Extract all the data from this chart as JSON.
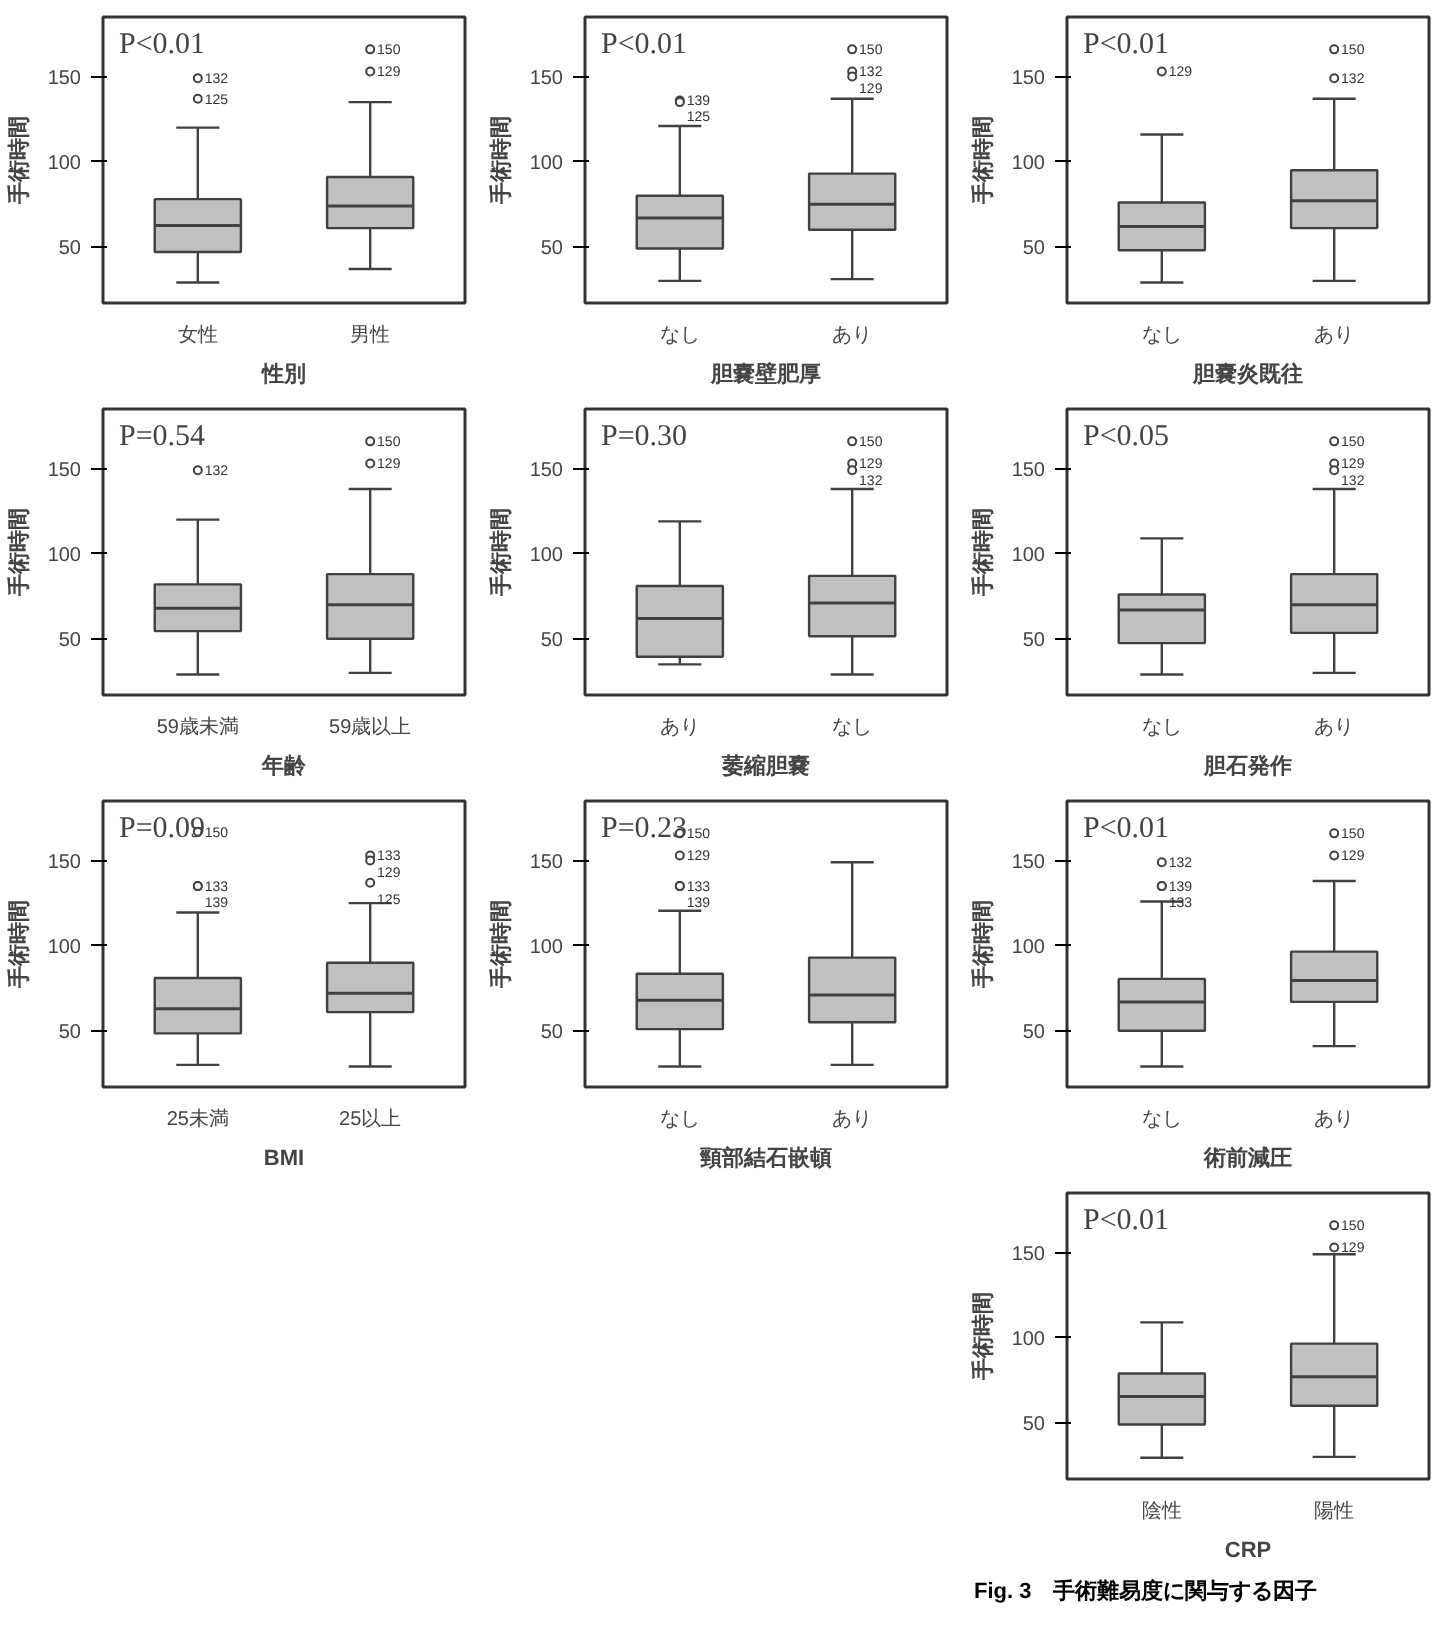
{
  "chart_data": [
    {
      "type": "box",
      "xlabel": "性別",
      "ylabel": "手術時間",
      "categories": [
        "女性",
        "男性"
      ],
      "ylim": [
        17,
        185
      ],
      "yticks": [
        50,
        100,
        150
      ],
      "grid": false,
      "boxes": [
        {
          "low": 29,
          "q1": 47,
          "median": 62.5,
          "q3": 78,
          "high": 120,
          "outliers": [
            149,
            137
          ]
        },
        {
          "low": 37,
          "q1": 61,
          "median": 74,
          "q3": 91,
          "high": 135,
          "outliers": [
            166,
            153
          ]
        }
      ],
      "annotations": [
        "P<0.01",
        "132",
        "125",
        "150",
        "129"
      ]
    },
    {
      "type": "box",
      "xlabel": "胆嚢壁肥厚",
      "ylabel": "手術時間",
      "categories": [
        "なし",
        "あり"
      ],
      "ylim": [
        17,
        185
      ],
      "yticks": [
        50,
        100,
        150
      ],
      "grid": false,
      "boxes": [
        {
          "low": 30,
          "q1": 49,
          "median": 67,
          "q3": 80,
          "high": 121,
          "outliers": [
            136,
            135
          ]
        },
        {
          "low": 31,
          "q1": 60,
          "median": 75,
          "q3": 93,
          "high": 137,
          "outliers": [
            166,
            153,
            150
          ]
        }
      ],
      "annotations": [
        "P<0.01",
        "139",
        "125",
        "150",
        "132",
        "129"
      ]
    },
    {
      "type": "box",
      "xlabel": "胆嚢炎既往",
      "ylabel": "手術時間",
      "categories": [
        "なし",
        "あり"
      ],
      "ylim": [
        17,
        185
      ],
      "yticks": [
        50,
        100,
        150
      ],
      "grid": false,
      "boxes": [
        {
          "low": 29,
          "q1": 48,
          "median": 62,
          "q3": 76,
          "high": 116,
          "outliers": [
            153
          ]
        },
        {
          "low": 30,
          "q1": 61,
          "median": 77,
          "q3": 95,
          "high": 137,
          "outliers": [
            166,
            149
          ]
        }
      ],
      "annotations": [
        "P<0.01",
        "129",
        "150",
        "132"
      ]
    },
    {
      "type": "box",
      "xlabel": "年齢",
      "ylabel": "手術時間",
      "categories": [
        "59歳未満",
        "59歳以上"
      ],
      "ylim": [
        17,
        185
      ],
      "yticks": [
        50,
        100,
        150
      ],
      "grid": false,
      "boxes": [
        {
          "low": 29,
          "q1": 54.5,
          "median": 68,
          "q3": 82,
          "high": 120,
          "outliers": [
            149
          ]
        },
        {
          "low": 30,
          "q1": 50,
          "median": 70,
          "q3": 88,
          "high": 138,
          "outliers": [
            166,
            153
          ]
        }
      ],
      "annotations": [
        "P=0.54",
        "132",
        "150",
        "129"
      ]
    },
    {
      "type": "box",
      "xlabel": "萎縮胆嚢",
      "ylabel": "手術時間",
      "categories": [
        "あり",
        "なし"
      ],
      "ylim": [
        17,
        185
      ],
      "yticks": [
        50,
        100,
        150
      ],
      "grid": false,
      "boxes": [
        {
          "low": 35,
          "q1": 39.5,
          "median": 62,
          "q3": 81,
          "high": 119
        },
        {
          "low": 29,
          "q1": 51.5,
          "median": 71,
          "q3": 87,
          "high": 138,
          "outliers": [
            166,
            153,
            149
          ]
        }
      ],
      "annotations": [
        "P=0.30",
        "150",
        "129",
        "132"
      ]
    },
    {
      "type": "box",
      "xlabel": "胆石発作",
      "ylabel": "手術時間",
      "categories": [
        "なし",
        "あり"
      ],
      "ylim": [
        17,
        185
      ],
      "yticks": [
        50,
        100,
        150
      ],
      "grid": false,
      "boxes": [
        {
          "low": 29,
          "q1": 47.5,
          "median": 67,
          "q3": 76,
          "high": 109
        },
        {
          "low": 30,
          "q1": 53.5,
          "median": 70,
          "q3": 88,
          "high": 138,
          "outliers": [
            166,
            153,
            149
          ]
        }
      ],
      "annotations": [
        "P<0.05",
        "150",
        "129",
        "132"
      ]
    },
    {
      "type": "box",
      "xlabel": "BMI",
      "ylabel": "手術時間",
      "categories": [
        "25未満",
        "25以上"
      ],
      "ylim": [
        17,
        185
      ],
      "yticks": [
        50,
        100,
        150
      ],
      "grid": false,
      "boxes": [
        {
          "low": 30,
          "q1": 48.5,
          "median": 63,
          "q3": 81,
          "high": 119.5,
          "outliers": [
            167,
            135,
            135
          ]
        },
        {
          "low": 29,
          "q1": 61,
          "median": 72,
          "q3": 90,
          "high": 125,
          "outliers": [
            153,
            150,
            137
          ]
        }
      ],
      "annotations": [
        "P=0.09",
        "150",
        "133",
        "139",
        "133",
        "129",
        "125"
      ]
    },
    {
      "type": "box",
      "xlabel": "頸部結石嵌頓",
      "ylabel": "手術時間",
      "categories": [
        "なし",
        "あり"
      ],
      "ylim": [
        17,
        185
      ],
      "yticks": [
        50,
        100,
        150
      ],
      "grid": false,
      "boxes": [
        {
          "low": 29,
          "q1": 51,
          "median": 68,
          "q3": 83.5,
          "high": 120.5,
          "outliers": [
            166,
            153,
            135,
            135
          ]
        },
        {
          "low": 30,
          "q1": 55,
          "median": 71,
          "q3": 93,
          "high": 149
        }
      ],
      "annotations": [
        "P=0.23",
        "150",
        "129",
        "133",
        "139"
      ]
    },
    {
      "type": "box",
      "xlabel": "術前減圧",
      "ylabel": "手術時間",
      "categories": [
        "なし",
        "あり"
      ],
      "ylim": [
        17,
        185
      ],
      "yticks": [
        50,
        100,
        150
      ],
      "grid": false,
      "boxes": [
        {
          "low": 29,
          "q1": 50,
          "median": 67,
          "q3": 80.5,
          "high": 126,
          "outliers": [
            149,
            135,
            135
          ]
        },
        {
          "low": 41,
          "q1": 67,
          "median": 79.5,
          "q3": 96.5,
          "high": 138,
          "outliers": [
            166,
            153
          ]
        }
      ],
      "annotations": [
        "P<0.01",
        "132",
        "139",
        "133",
        "150",
        "129"
      ]
    },
    {
      "type": "box",
      "xlabel": "CRP",
      "ylabel": "手術時間",
      "categories": [
        "陰性",
        "陽性"
      ],
      "ylim": [
        17,
        185
      ],
      "yticks": [
        50,
        100,
        150
      ],
      "grid": false,
      "boxes": [
        {
          "low": 29.5,
          "q1": 49,
          "median": 65.5,
          "q3": 79,
          "high": 109
        },
        {
          "low": 30,
          "q1": 60,
          "median": 77,
          "q3": 96.5,
          "high": 149,
          "outliers": [
            166,
            153
          ]
        }
      ],
      "annotations": [
        "P<0.01",
        "150",
        "129",
        "Fig. 3　手術難易度に関与する因子"
      ]
    }
  ]
}
